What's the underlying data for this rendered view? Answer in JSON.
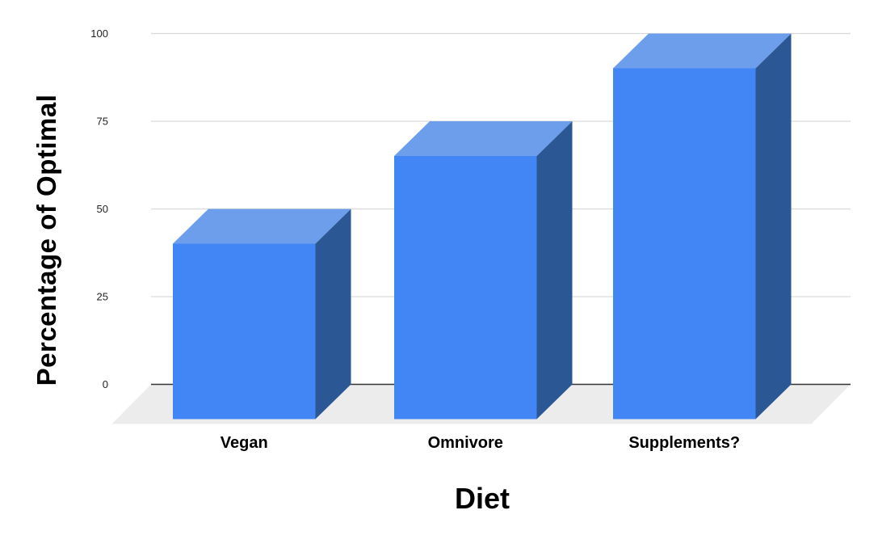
{
  "chart_data": {
    "type": "bar",
    "projection": "3d-column",
    "title": "",
    "xlabel": "Diet",
    "ylabel": "Percentage of Optimal",
    "categories": [
      "Vegan",
      "Omnivore",
      "Supplements?"
    ],
    "values": [
      50,
      75,
      100
    ],
    "yticks": [
      0,
      25,
      50,
      75,
      100
    ],
    "ylim": [
      0,
      100
    ],
    "grid": true,
    "legend": "none",
    "colors": {
      "bar_front": "#4285f4",
      "bar_top": "#6d9eeb",
      "bar_side": "#2b5795",
      "floor": "#ececec",
      "gridline": "#d9d9d9",
      "axis_line": "#333333",
      "tick_text": "#222222",
      "label_text": "#000000",
      "background": "#ffffff"
    }
  }
}
